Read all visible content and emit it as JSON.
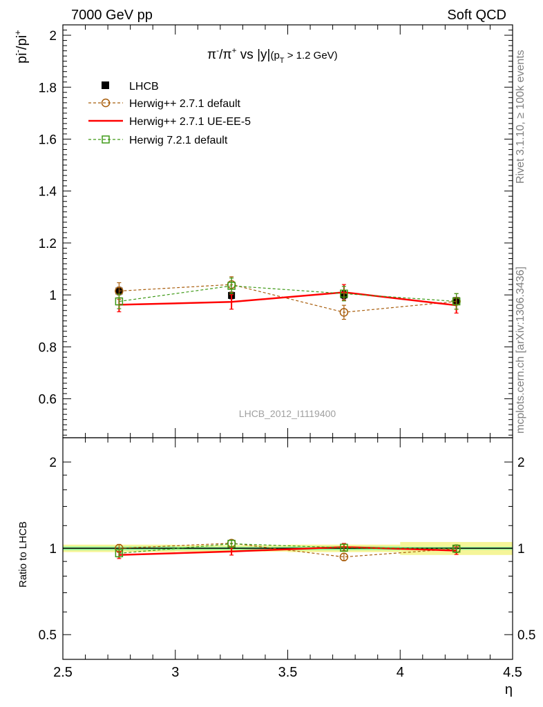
{
  "header": {
    "left": "7000 GeV pp",
    "right": "Soft QCD"
  },
  "side_labels": {
    "rivet": "Rivet 3.1.10, ≥ 100k events",
    "mcplots": "mcplots.cern.ch [arXiv:1306.3436]"
  },
  "chart_data": [
    {
      "panel": "main",
      "type": "line",
      "title": "π⁻/π⁺ vs |y|(p_T > 1.2 GeV)",
      "title_parts": {
        "t1": "π",
        "t1sup": "-",
        "t2": "/π",
        "t2sup": "+",
        "t3": " vs |y|",
        "t4": "(p",
        "t4sub": "T",
        "t5": " > 1.2 GeV)"
      },
      "ylabel": "pi⁻/pi⁺",
      "ylabel_parts": {
        "a": "pi",
        "asup": "-",
        "b": "/pi",
        "bsup": "+"
      },
      "xlim": [
        2.5,
        4.5
      ],
      "ylim": [
        0.45,
        2.04
      ],
      "yticks": [
        0.6,
        0.8,
        1,
        1.2,
        1.4,
        1.6,
        1.8,
        2
      ],
      "ytick_labels": [
        "0.6",
        "0.8",
        "1",
        "1.2",
        "1.4",
        "1.6",
        "1.8",
        "2"
      ],
      "watermark": "LHCB_2012_I1119400",
      "legend_position": "top-left",
      "x": [
        2.75,
        3.25,
        3.75,
        4.25
      ],
      "series": [
        {
          "name": "LHCB",
          "style": "data",
          "color": "#000000",
          "values": [
            1.015,
            0.998,
            1.0,
            0.978
          ],
          "err": [
            0.015,
            0.013,
            0.015,
            0.012
          ]
        },
        {
          "name": "Herwig++ 2.7.1 default",
          "style": "circle-dashed",
          "color": "#a85c0a",
          "values": [
            1.015,
            1.04,
            0.933,
            0.975
          ],
          "err": [
            0.032,
            0.03,
            0.027,
            0.03
          ]
        },
        {
          "name": "Herwig++ 2.7.1 UE-EE-5",
          "style": "solid",
          "color": "#ff0000",
          "values": [
            0.962,
            0.973,
            1.01,
            0.96
          ],
          "err": [
            0.027,
            0.028,
            0.03,
            0.03
          ]
        },
        {
          "name": "Herwig 7.2.1 default",
          "style": "square-dashed",
          "color": "#3d9915",
          "values": [
            0.975,
            1.035,
            1.005,
            0.975
          ],
          "err": [
            0.028,
            0.03,
            0.028,
            0.03
          ]
        }
      ]
    },
    {
      "panel": "ratio",
      "type": "line",
      "ylabel": "Ratio to LHCB",
      "xlabel": "η",
      "xlim": [
        2.5,
        4.5
      ],
      "ylim": [
        0.41,
        2.43
      ],
      "log_y": true,
      "xticks": [
        2.5,
        3,
        3.5,
        4,
        4.5
      ],
      "xtick_labels": [
        "2.5",
        "3",
        "3.5",
        "4",
        "4.5"
      ],
      "yticks": [
        0.5,
        1,
        2
      ],
      "ytick_labels": [
        "0.5",
        "1",
        "2"
      ],
      "reference_band": {
        "x_edges": [
          2.5,
          3.0,
          3.5,
          4.0,
          4.5
        ],
        "inner": [
          0.015,
          0.013,
          0.015,
          0.012
        ],
        "outer": [
          0.03,
          0.026,
          0.03,
          0.052
        ],
        "inner_color": "#98f598",
        "outer_color": "#f5f598"
      },
      "x": [
        2.75,
        3.25,
        3.75,
        4.25
      ],
      "series": [
        {
          "name": "Herwig++ 2.7.1 default",
          "style": "circle-dashed",
          "color": "#a85c0a",
          "values": [
            1.0,
            1.042,
            0.933,
            0.997
          ],
          "err": [
            0.032,
            0.03,
            0.027,
            0.03
          ]
        },
        {
          "name": "Herwig++ 2.7.1 UE-EE-5",
          "style": "solid",
          "color": "#ff0000",
          "values": [
            0.948,
            0.975,
            1.01,
            0.982
          ],
          "err": [
            0.027,
            0.028,
            0.03,
            0.03
          ]
        },
        {
          "name": "Herwig 7.2.1 default",
          "style": "square-dashed",
          "color": "#3d9915",
          "values": [
            0.961,
            1.037,
            1.005,
            0.997
          ],
          "err": [
            0.028,
            0.03,
            0.028,
            0.03
          ]
        }
      ]
    }
  ]
}
